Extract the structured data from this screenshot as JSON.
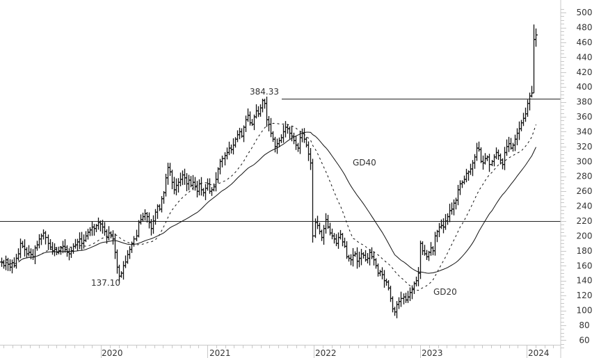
{
  "chart_data": {
    "type": "ohlc",
    "title": "",
    "xlabel": "",
    "ylabel": "",
    "ylim": [
      50,
      510
    ],
    "y_ticks": [
      60,
      80,
      100,
      120,
      140,
      160,
      180,
      200,
      220,
      240,
      260,
      280,
      300,
      320,
      340,
      360,
      380,
      400,
      420,
      440,
      460,
      480,
      500
    ],
    "x_ticks": [
      "2020",
      "2021",
      "2022",
      "2023",
      "2024"
    ],
    "grid": false,
    "legend": "none",
    "horizontal_lines": [
      {
        "value": 384.33,
        "x_start_label": "2021-07"
      },
      {
        "value": 218,
        "x_start_label": "start"
      }
    ],
    "annotations": [
      {
        "text": "384.33",
        "type": "high",
        "value": 384.33
      },
      {
        "text": "137.10",
        "type": "low",
        "value": 137.1
      },
      {
        "text": "GD40",
        "type": "label",
        "series": "GD40 (40-week moving average, solid)"
      },
      {
        "text": "GD20",
        "type": "label",
        "series": "GD20 (20-week moving average, dashed)"
      }
    ],
    "series": [
      {
        "name": "Price (weekly closes, approx.)",
        "style": "ohlc-bars",
        "values": [
          165,
          160,
          168,
          162,
          158,
          164,
          160,
          170,
          176,
          190,
          186,
          182,
          176,
          178,
          175,
          172,
          184,
          188,
          196,
          200,
          204,
          198,
          190,
          185,
          180,
          182,
          178,
          180,
          184,
          186,
          182,
          178,
          176,
          180,
          186,
          188,
          192,
          196,
          190,
          194,
          200,
          205,
          208,
          212,
          210,
          214,
          218,
          216,
          212,
          206,
          198,
          204,
          200,
          196,
          178,
          158,
          146,
          150,
          160,
          165,
          175,
          182,
          190,
          196,
          200,
          218,
          222,
          226,
          230,
          226,
          218,
          210,
          220,
          232,
          240,
          236,
          250,
          258,
          278,
          292,
          286,
          272,
          262,
          268,
          272,
          276,
          282,
          278,
          270,
          275,
          268,
          272,
          266,
          260,
          270,
          262,
          258,
          264,
          270,
          260,
          262,
          266,
          276,
          290,
          300,
          304,
          308,
          312,
          318,
          316,
          322,
          330,
          336,
          340,
          334,
          346,
          356,
          362,
          352,
          350,
          360,
          368,
          364,
          372,
          382,
          378,
          356,
          350,
          338,
          330,
          320,
          324,
          328,
          332,
          340,
          346,
          344,
          338,
          334,
          328,
          322,
          318,
          332,
          338,
          330,
          322,
          310,
          298,
          200,
          218,
          214,
          206,
          198,
          210,
          222,
          212,
          204,
          200,
          196,
          190,
          198,
          202,
          192,
          186,
          172,
          170,
          168,
          174,
          176,
          166,
          170,
          176,
          174,
          168,
          170,
          178,
          172,
          168,
          160,
          150,
          152,
          148,
          140,
          138,
          130,
          116,
          102,
          98,
          108,
          112,
          116,
          118,
          114,
          118,
          124,
          128,
          136,
          140,
          150,
          190,
          180,
          176,
          172,
          178,
          184,
          180,
          200,
          206,
          212,
          214,
          212,
          220,
          226,
          234,
          236,
          244,
          248,
          262,
          270,
          272,
          276,
          284,
          286,
          290,
          298,
          306,
          318,
          316,
          300,
          298,
          304,
          306,
          296,
          300,
          306,
          312,
          308,
          302,
          296,
          312,
          320,
          324,
          318,
          322,
          330,
          338,
          344,
          352,
          358,
          364,
          378,
          388,
          392,
          464,
          470
        ]
      },
      {
        "name": "GD20",
        "style": "dashed",
        "description": "20-week moving average"
      },
      {
        "name": "GD40",
        "style": "solid",
        "description": "40-week moving average"
      }
    ],
    "key_levels": {
      "all_time_high_label": 384.33,
      "covid_low_label": 137.1,
      "support_line": 218,
      "recent_high": 484,
      "recent_close": 470,
      "low_2022": 88
    }
  },
  "axis": {
    "y_labels": [
      "500",
      "480",
      "460",
      "440",
      "420",
      "400",
      "380",
      "360",
      "340",
      "320",
      "300",
      "280",
      "260",
      "240",
      "220",
      "200",
      "180",
      "160",
      "140",
      "120",
      "100",
      "80",
      "60"
    ],
    "x_labels": [
      "2020",
      "2021",
      "2022",
      "2023",
      "2024"
    ]
  },
  "labels": {
    "high": "384.33",
    "low": "137.10",
    "gd40": "GD40",
    "gd20": "GD20"
  },
  "colors": {
    "price": "#111111",
    "ma": "#111111",
    "axis": "#c8c8c8",
    "text": "#333333",
    "hline": "#222222"
  }
}
